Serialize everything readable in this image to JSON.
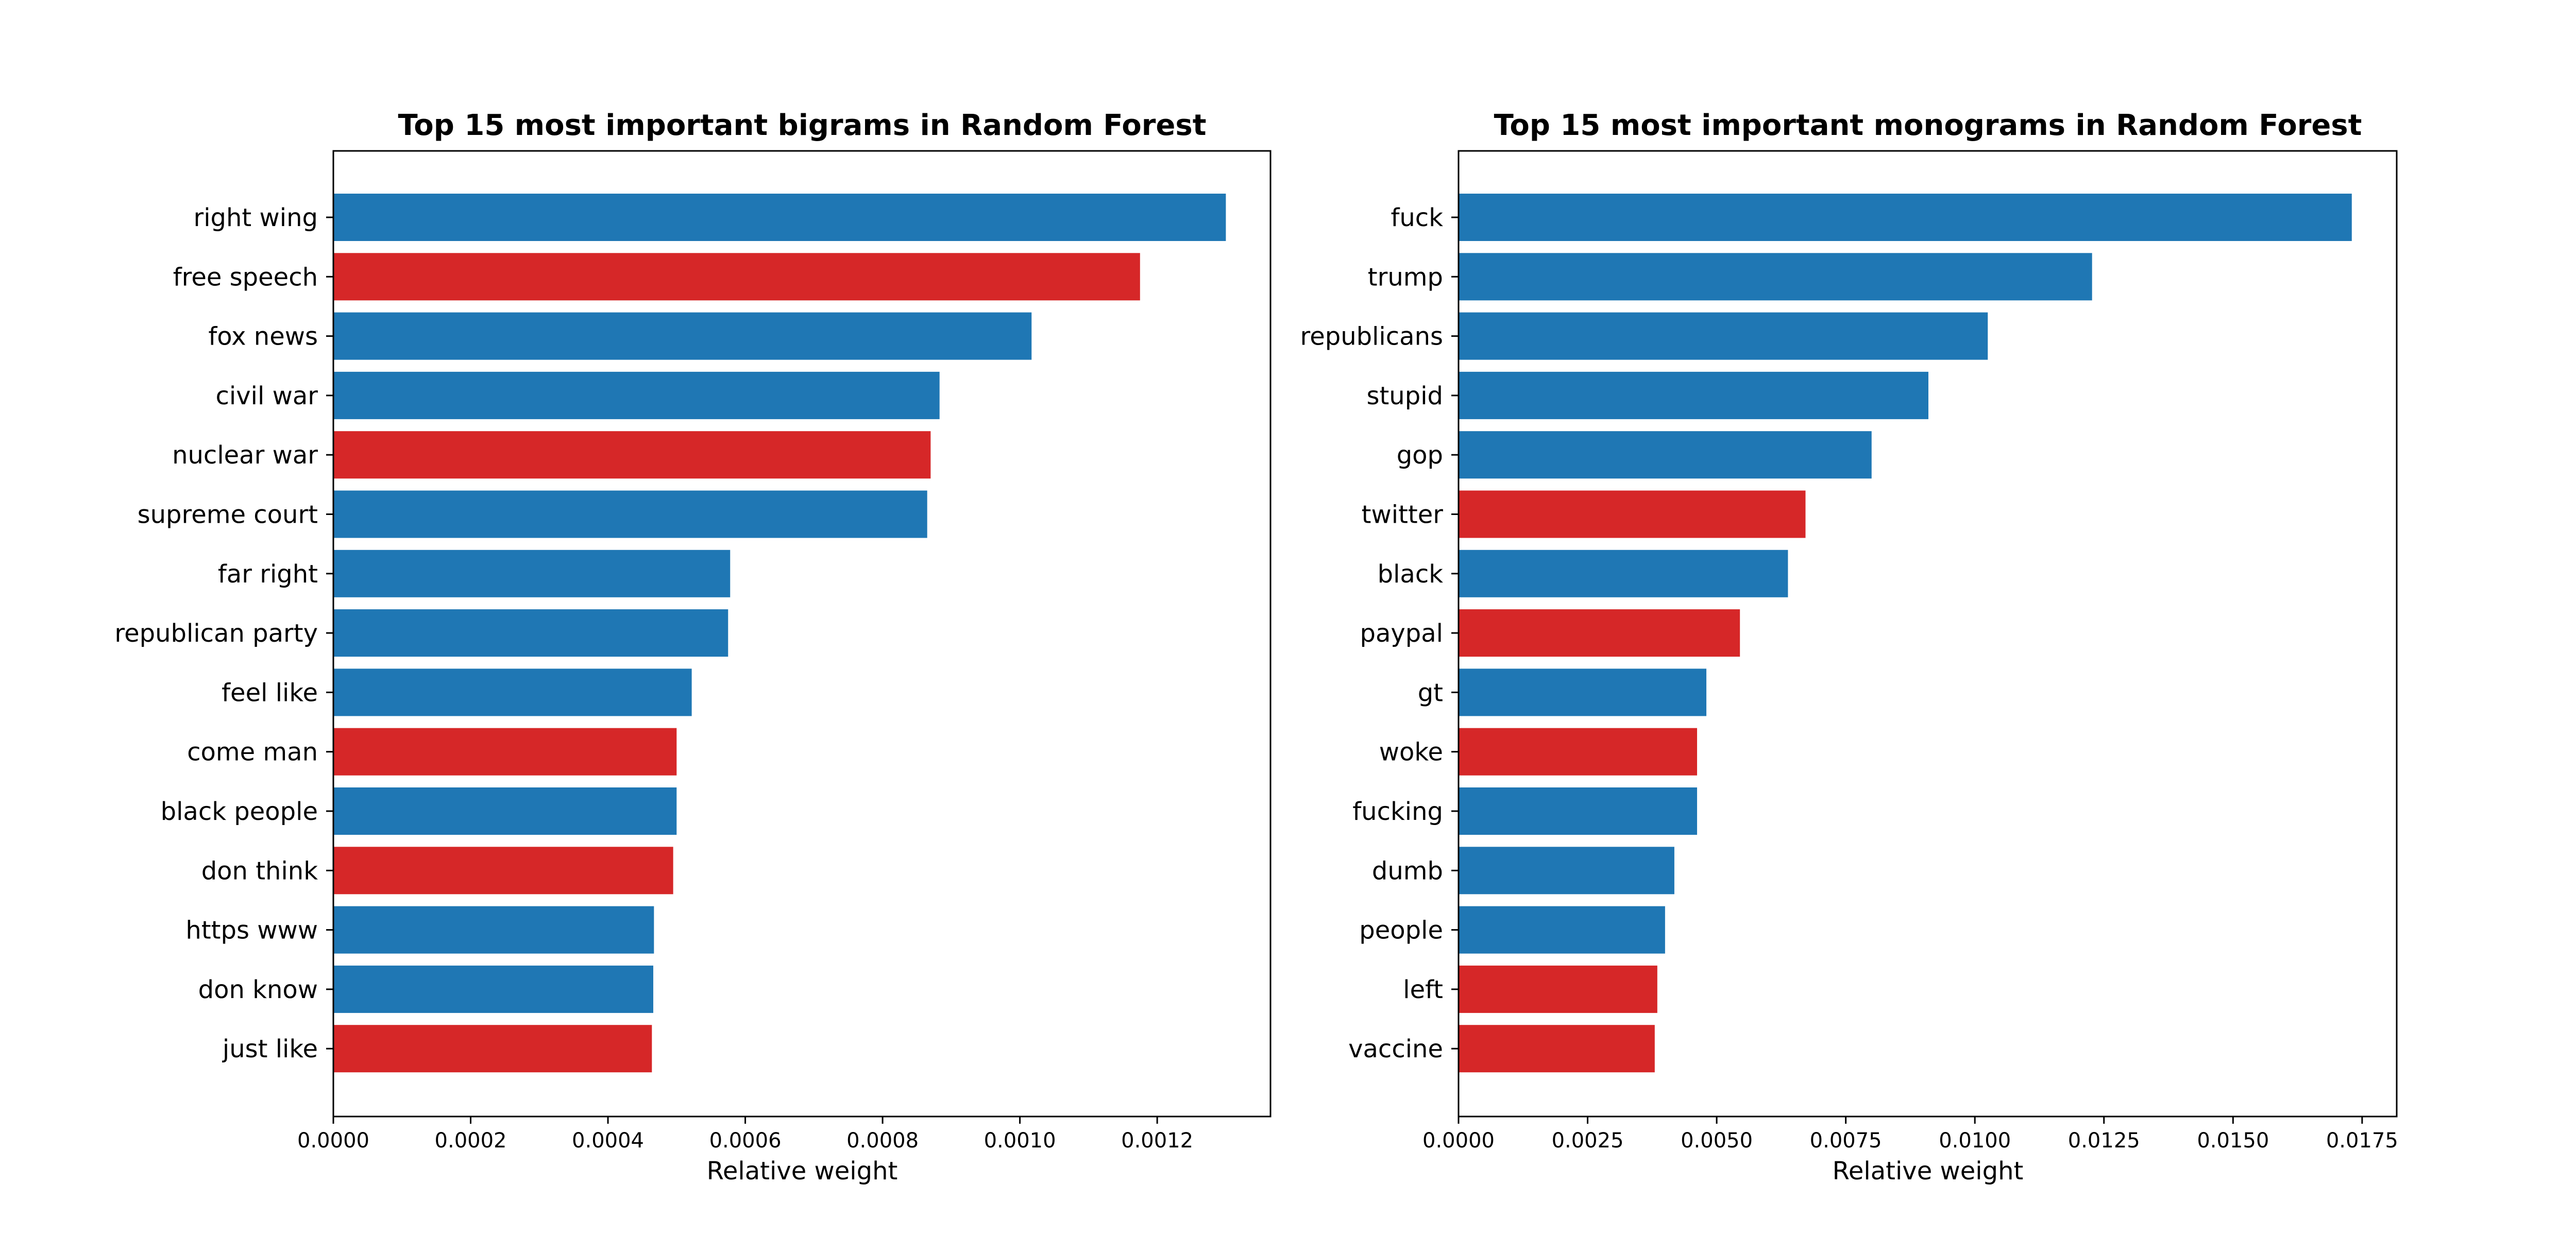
{
  "chart_data": [
    {
      "type": "bar",
      "orientation": "horizontal",
      "title": "Top 15 most important bigrams in Random Forest",
      "xlabel": "Relative weight",
      "ylabel": "",
      "xlim": [
        0,
        0.001365
      ],
      "xticks": [
        "0.0000",
        "0.0002",
        "0.0004",
        "0.0006",
        "0.0008",
        "0.0010",
        "0.0012"
      ],
      "categories": [
        "right wing",
        "free speech",
        "fox news",
        "civil war",
        "nuclear war",
        "supreme court",
        "far right",
        "republican party",
        "feel like",
        "come man",
        "black people",
        "don think",
        "https www",
        "don know",
        "just like"
      ],
      "values": [
        0.0013,
        0.001175,
        0.001017,
        0.000883,
        0.00087,
        0.000865,
        0.000578,
        0.000575,
        0.000522,
        0.0005,
        0.0005,
        0.000495,
        0.000467,
        0.000466,
        0.000464
      ],
      "colors": [
        "#1f77b4",
        "#d62728",
        "#1f77b4",
        "#1f77b4",
        "#d62728",
        "#1f77b4",
        "#1f77b4",
        "#1f77b4",
        "#1f77b4",
        "#d62728",
        "#1f77b4",
        "#d62728",
        "#1f77b4",
        "#1f77b4",
        "#d62728"
      ],
      "grid": false,
      "legend": "none"
    },
    {
      "type": "bar",
      "orientation": "horizontal",
      "title": "Top 15 most important monograms in Random Forest",
      "xlabel": "Relative weight",
      "ylabel": "",
      "xlim": [
        0,
        0.01817
      ],
      "xticks": [
        "0.0000",
        "0.0025",
        "0.0050",
        "0.0075",
        "0.0100",
        "0.0125",
        "0.0150",
        "0.0175"
      ],
      "categories": [
        "fuck",
        "trump",
        "republicans",
        "stupid",
        "gop",
        "twitter",
        "black",
        "paypal",
        "gt",
        "woke",
        "fucking",
        "dumb",
        "people",
        "left",
        "vaccine"
      ],
      "values": [
        0.0173,
        0.01227,
        0.01025,
        0.0091,
        0.008,
        0.00672,
        0.00638,
        0.00545,
        0.0048,
        0.00462,
        0.00462,
        0.00418,
        0.004,
        0.00385,
        0.0038
      ],
      "colors": [
        "#1f77b4",
        "#1f77b4",
        "#1f77b4",
        "#1f77b4",
        "#1f77b4",
        "#d62728",
        "#1f77b4",
        "#d62728",
        "#1f77b4",
        "#d62728",
        "#1f77b4",
        "#1f77b4",
        "#1f77b4",
        "#d62728",
        "#d62728"
      ],
      "grid": false,
      "legend": "none"
    }
  ]
}
